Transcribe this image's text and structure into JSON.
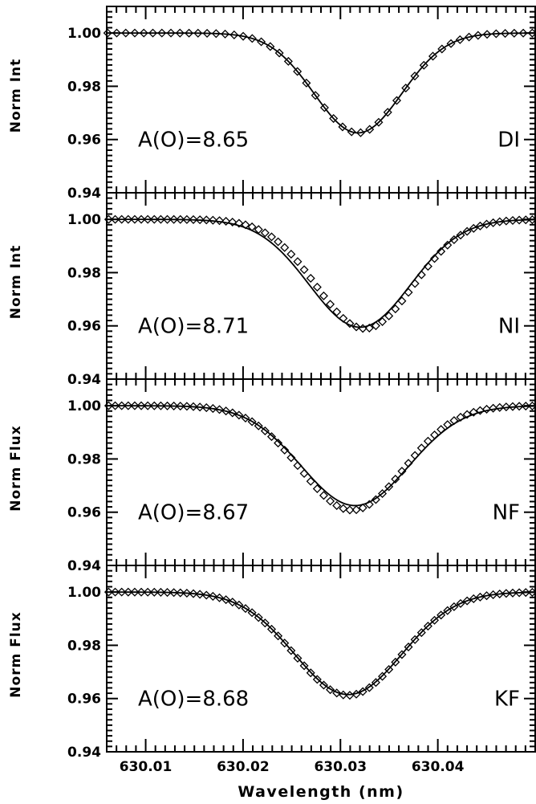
{
  "chart_data": {
    "type": "line",
    "xlabel": "Wavelength (nm)",
    "xlim": [
      630.006,
      630.05
    ],
    "ylim": [
      0.94,
      1.01
    ],
    "x_ticks": [
      630.01,
      630.02,
      630.03,
      630.04
    ],
    "x_tick_labels": [
      "630.01",
      "630.02",
      "630.03",
      "630.04"
    ],
    "y_ticks": [
      0.94,
      0.96,
      0.98,
      1.0
    ],
    "y_tick_labels": [
      "0.94",
      "0.96",
      "0.98",
      "1.00"
    ],
    "marker": "diamond",
    "panels": [
      {
        "tag": "DI",
        "ylabel": "Norm Int",
        "annotation": "A(O)=8.65",
        "model": {
          "center": 630.0318,
          "depth": 0.0375,
          "sigma": 0.0045
        },
        "obs": {
          "center": 630.0318,
          "depth": 0.0375,
          "sigma": 0.0045,
          "x_start": 630.0061,
          "x_end": 630.0497,
          "n": 48
        }
      },
      {
        "tag": "NI",
        "ylabel": "Norm Int",
        "annotation": "A(O)=8.71",
        "model": {
          "center": 630.032,
          "depth": 0.0405,
          "sigma": 0.0052
        },
        "obs": {
          "center": 630.0325,
          "depth": 0.041,
          "sigma": 0.005,
          "x_start": 630.0062,
          "x_end": 630.0497,
          "n": 66
        }
      },
      {
        "tag": "NF",
        "ylabel": "Norm Flux",
        "annotation": "A(O)=8.67",
        "model": {
          "center": 630.0315,
          "depth": 0.0375,
          "sigma": 0.0055
        },
        "obs": {
          "center": 630.0312,
          "depth": 0.0392,
          "sigma": 0.0053,
          "x_start": 630.0062,
          "x_end": 630.0497,
          "n": 66
        }
      },
      {
        "tag": "KF",
        "ylabel": "Norm Flux",
        "annotation": "A(O)=8.68",
        "model": {
          "center": 630.0308,
          "depth": 0.0385,
          "sigma": 0.0055
        },
        "obs": {
          "center": 630.0308,
          "depth": 0.0388,
          "sigma": 0.0055,
          "x_start": 630.0062,
          "x_end": 630.0497,
          "n": 66
        }
      }
    ]
  }
}
